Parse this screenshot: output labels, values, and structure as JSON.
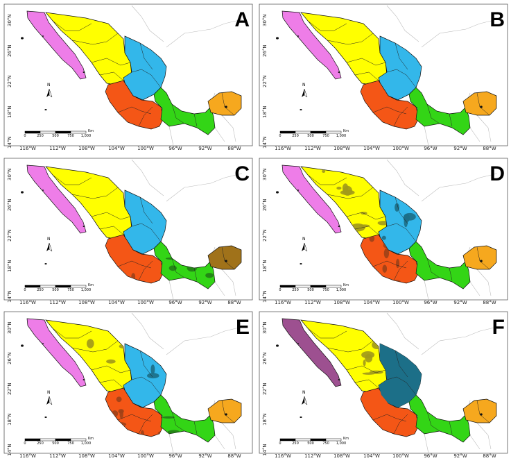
{
  "panels": [
    {
      "letter": "A",
      "variant": "base"
    },
    {
      "letter": "B",
      "variant": "base"
    },
    {
      "letter": "C",
      "variant": "south-dark"
    },
    {
      "letter": "D",
      "variant": "all-dark"
    },
    {
      "letter": "E",
      "variant": "mixed-dark"
    },
    {
      "letter": "F",
      "variant": "north-dark"
    }
  ],
  "latitude_labels": [
    "30°N",
    "26°N",
    "22°N",
    "18°N",
    "14°N"
  ],
  "longitude_labels": [
    "116°W",
    "112°W",
    "108°W",
    "104°W",
    "100°W",
    "96°W",
    "92°W",
    "88°W"
  ],
  "scale_bar": {
    "labels": [
      "0",
      "250",
      "500",
      "750",
      "1,000"
    ],
    "unit": "Km"
  },
  "north_arrow": {
    "label": "N"
  },
  "region_colors": {
    "pink": "#ee7de8",
    "yellow": "#ffff00",
    "blue": "#33b7ea",
    "red": "#f45616",
    "green": "#33d516",
    "orange": "#f6a81e",
    "pink_dark": "#9d5090",
    "yellow_dark": "#a29a1a",
    "blue_dark": "#1c6f88",
    "red_dark": "#9e4118",
    "green_dark": "#237f17",
    "orange_dark": "#a0721a"
  }
}
